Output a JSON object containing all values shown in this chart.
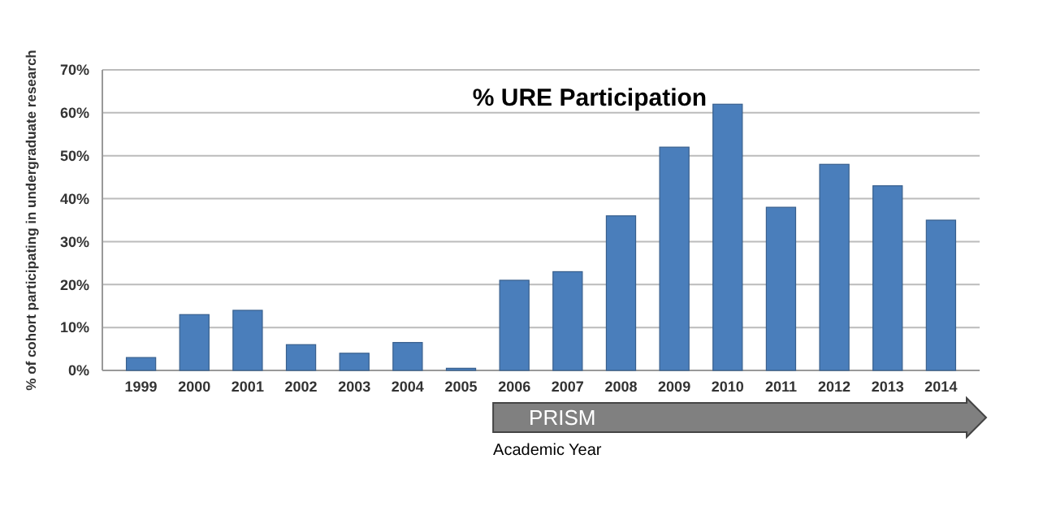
{
  "chart_data": {
    "type": "bar",
    "title": "% URE Participation",
    "xlabel": "Academic Year",
    "ylabel": "% of cohort participating in undergraduate research",
    "categories": [
      "1999",
      "2000",
      "2001",
      "2002",
      "2003",
      "2004",
      "2005",
      "2006",
      "2007",
      "2008",
      "2009",
      "2010",
      "2011",
      "2012",
      "2013",
      "2014"
    ],
    "values": [
      3,
      13,
      14,
      6,
      4,
      6.5,
      0.5,
      21,
      23,
      36,
      52,
      62,
      38,
      48,
      43,
      35
    ],
    "color": "#4a7ebb",
    "ylim": [
      0,
      70
    ],
    "yticks": [
      {
        "value": 0,
        "label": "0%"
      },
      {
        "value": 10,
        "label": "10%"
      },
      {
        "value": 20,
        "label": "20%"
      },
      {
        "value": 30,
        "label": "30%"
      },
      {
        "value": 40,
        "label": "40%"
      },
      {
        "value": 50,
        "label": "50%"
      },
      {
        "value": 60,
        "label": "60%"
      },
      {
        "value": 70,
        "label": "70%"
      }
    ],
    "grid": "y",
    "annotations": [
      "PRISM"
    ]
  }
}
